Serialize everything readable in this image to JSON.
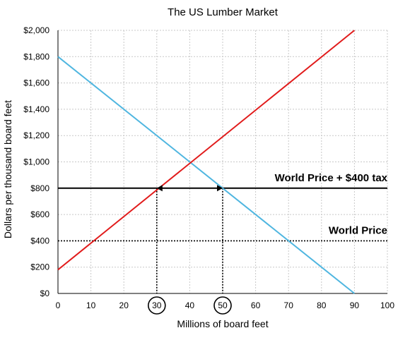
{
  "chart_data": {
    "type": "line",
    "title": "The US Lumber Market",
    "xlabel": "Millions of board feet",
    "ylabel": "Dollars per thousand board feet",
    "xlim": [
      0,
      100
    ],
    "ylim": [
      0,
      2000
    ],
    "x_ticks": [
      0,
      10,
      20,
      30,
      40,
      50,
      60,
      70,
      80,
      90,
      100
    ],
    "y_ticks": [
      0,
      200,
      400,
      600,
      800,
      1000,
      1200,
      1400,
      1600,
      1800,
      2000
    ],
    "y_tick_labels": [
      "$0",
      "$200",
      "$400",
      "$600",
      "$800",
      "$1,000",
      "$1,200",
      "$1,400",
      "$1,600",
      "$1,800",
      "$2,000"
    ],
    "circled_x_ticks": [
      30,
      50
    ],
    "grid": true,
    "colors": {
      "supply": "#e11b1b",
      "demand": "#4fb6e0",
      "price_line": "#000000"
    },
    "series": [
      {
        "x": [
          0,
          90
        ],
        "y": [
          1800,
          0
        ]
      },
      {
        "x": [
          0,
          90
        ],
        "y": [
          180,
          2000
        ]
      }
    ],
    "price_lines": [
      {
        "label": "World Price + $400 tax",
        "y": 800,
        "style": "solid"
      },
      {
        "label": "World Price",
        "y": 400,
        "style": "dotted"
      }
    ],
    "drop_lines": [
      {
        "x": 30,
        "y": 800
      },
      {
        "x": 50,
        "y": 800
      }
    ],
    "arrows": [
      {
        "from_x": 40,
        "to_x": 30,
        "y": 800
      },
      {
        "from_x": 40,
        "to_x": 50,
        "y": 800
      }
    ]
  }
}
